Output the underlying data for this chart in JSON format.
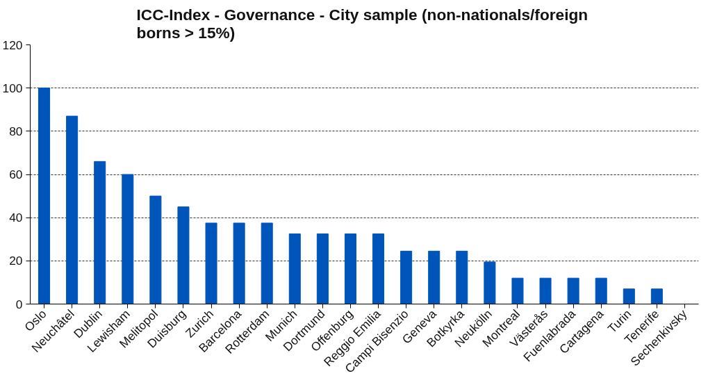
{
  "chart_data": {
    "type": "bar",
    "title": "ICC-Index - Governance -  City sample (non-nationals/foreign borns > 15%)",
    "categories": [
      "Oslo",
      "Neuchâtel",
      "Dublin",
      "Lewisham",
      "Melitopol",
      "Duisburg",
      "Zurich",
      "Barcelona",
      "Rotterdam",
      "Munich",
      "Dortmund",
      "Offenburg",
      "Reggio Emilia",
      "Campi Bisenzio",
      "Geneva",
      "Botkyrka",
      "Neukölln",
      "Montreal",
      "Västerås",
      "Fuenlabrada",
      "Cartagena",
      "Turin",
      "Tenerife",
      "Sechenkivsky"
    ],
    "values": [
      100,
      87,
      66,
      60,
      50,
      45,
      37.5,
      37.5,
      37.5,
      32.5,
      32.5,
      32.5,
      32.5,
      24.5,
      24.5,
      24.5,
      19.5,
      12,
      12,
      12,
      12,
      7,
      7,
      0
    ],
    "color": "#0055bb",
    "ylim": [
      0,
      120
    ],
    "yticks": [
      0,
      20,
      40,
      60,
      80,
      100,
      120
    ],
    "grid": "y"
  }
}
